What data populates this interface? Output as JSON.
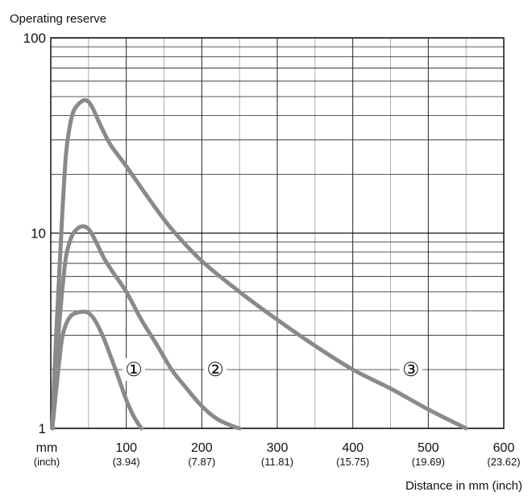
{
  "chart_data": {
    "type": "line",
    "title": "",
    "ylabel": "Operating reserve",
    "xlabel": "Distance in mm (inch)",
    "x_unit_label": "mm",
    "x_unit_label_secondary": "(inch)",
    "xlim": [
      0,
      600
    ],
    "ylim": [
      1,
      100
    ],
    "y_scale": "log",
    "grid": true,
    "x_ticks": [
      {
        "value": 100,
        "label": "100",
        "sublabel": "(3.94)"
      },
      {
        "value": 200,
        "label": "200",
        "sublabel": "(7.87)"
      },
      {
        "value": 300,
        "label": "300",
        "sublabel": "(11.81)"
      },
      {
        "value": 400,
        "label": "400",
        "sublabel": "(15.75)"
      },
      {
        "value": 500,
        "label": "500",
        "sublabel": "(19.69)"
      },
      {
        "value": 600,
        "label": "600",
        "sublabel": "(23.62)"
      }
    ],
    "y_ticks": [
      {
        "value": 1,
        "label": "1"
      },
      {
        "value": 10,
        "label": "10"
      },
      {
        "value": 100,
        "label": "100"
      }
    ],
    "series_color": "#8a8a8a",
    "series": [
      {
        "marker": "①",
        "marker_pos": {
          "x": 110,
          "y": 2.0
        },
        "x": [
          2,
          5,
          10,
          15,
          20,
          25,
          30,
          40,
          50,
          60,
          70,
          80,
          90,
          100,
          110,
          120
        ],
        "y": [
          1.0,
          1.3,
          2.0,
          2.9,
          3.4,
          3.7,
          3.85,
          3.95,
          3.9,
          3.5,
          2.9,
          2.3,
          1.8,
          1.4,
          1.15,
          1.0
        ]
      },
      {
        "marker": "②",
        "marker_pos": {
          "x": 218,
          "y": 2.0
        },
        "x": [
          2,
          5,
          10,
          15,
          20,
          25,
          30,
          40,
          50,
          60,
          70,
          80,
          100,
          120,
          140,
          160,
          180,
          200,
          220,
          240,
          250
        ],
        "y": [
          1.0,
          1.6,
          3.0,
          5.0,
          7.5,
          9.0,
          10.0,
          10.8,
          10.5,
          9.0,
          7.5,
          6.5,
          5.0,
          3.6,
          2.7,
          2.0,
          1.6,
          1.3,
          1.12,
          1.03,
          1.0
        ]
      },
      {
        "marker": "③",
        "marker_pos": {
          "x": 477,
          "y": 2.0
        },
        "x": [
          2,
          5,
          10,
          15,
          20,
          25,
          30,
          35,
          40,
          45,
          50,
          55,
          60,
          70,
          80,
          100,
          130,
          160,
          200,
          250,
          300,
          350,
          400,
          450,
          500,
          550
        ],
        "y": [
          1.0,
          2.0,
          5.0,
          12.0,
          25.0,
          35.0,
          42.0,
          45.0,
          47.0,
          48.0,
          47.0,
          44.0,
          40.0,
          33.0,
          28.0,
          22.0,
          15.0,
          10.5,
          7.2,
          5.0,
          3.6,
          2.65,
          2.0,
          1.6,
          1.25,
          1.0
        ]
      }
    ]
  }
}
